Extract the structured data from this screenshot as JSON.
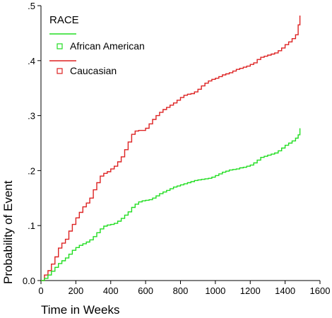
{
  "chart_data": {
    "type": "line",
    "step": true,
    "xlabel": "Time in Weeks",
    "ylabel": "Probability of Event",
    "xlim": [
      0,
      1600
    ],
    "ylim": [
      0,
      0.5
    ],
    "x_ticks": [
      "0",
      "200",
      "400",
      "600",
      "800",
      "1000",
      "1200",
      "1400",
      "1600"
    ],
    "y_ticks": [
      "0.0",
      ".1",
      ".2",
      ".3",
      ".4",
      ".5"
    ],
    "grid": false,
    "legend": {
      "title": "RACE",
      "placement": "top-left",
      "entries": [
        "African American",
        "Caucasian"
      ]
    },
    "series": [
      {
        "name": "African American",
        "color": "#22dd22",
        "x": [
          0,
          20,
          40,
          60,
          80,
          100,
          120,
          140,
          160,
          180,
          200,
          220,
          240,
          260,
          280,
          300,
          320,
          340,
          360,
          380,
          400,
          420,
          440,
          460,
          480,
          500,
          520,
          540,
          560,
          580,
          600,
          620,
          640,
          660,
          680,
          700,
          720,
          740,
          760,
          780,
          800,
          820,
          840,
          860,
          880,
          900,
          920,
          940,
          960,
          980,
          1000,
          1020,
          1040,
          1060,
          1080,
          1100,
          1120,
          1140,
          1160,
          1180,
          1200,
          1220,
          1240,
          1260,
          1280,
          1300,
          1320,
          1340,
          1360,
          1380,
          1400,
          1420,
          1440,
          1460,
          1475,
          1485
        ],
        "y": [
          0.0,
          0.004,
          0.01,
          0.017,
          0.024,
          0.031,
          0.036,
          0.041,
          0.048,
          0.055,
          0.06,
          0.064,
          0.067,
          0.07,
          0.074,
          0.08,
          0.087,
          0.094,
          0.099,
          0.101,
          0.102,
          0.104,
          0.108,
          0.113,
          0.119,
          0.125,
          0.133,
          0.139,
          0.143,
          0.145,
          0.146,
          0.147,
          0.15,
          0.154,
          0.158,
          0.161,
          0.164,
          0.167,
          0.17,
          0.172,
          0.174,
          0.176,
          0.178,
          0.18,
          0.182,
          0.183,
          0.184,
          0.185,
          0.186,
          0.188,
          0.191,
          0.194,
          0.197,
          0.199,
          0.201,
          0.202,
          0.203,
          0.205,
          0.206,
          0.208,
          0.21,
          0.214,
          0.219,
          0.224,
          0.226,
          0.228,
          0.23,
          0.232,
          0.236,
          0.241,
          0.246,
          0.25,
          0.254,
          0.259,
          0.265,
          0.277
        ]
      },
      {
        "name": "Caucasian",
        "color": "#dd2222",
        "x": [
          0,
          20,
          40,
          60,
          80,
          100,
          120,
          140,
          160,
          180,
          200,
          220,
          240,
          260,
          280,
          300,
          320,
          340,
          360,
          380,
          400,
          420,
          440,
          460,
          480,
          500,
          520,
          540,
          560,
          580,
          600,
          620,
          640,
          660,
          680,
          700,
          720,
          740,
          760,
          780,
          800,
          820,
          840,
          860,
          880,
          900,
          920,
          940,
          960,
          980,
          1000,
          1020,
          1040,
          1060,
          1080,
          1100,
          1120,
          1140,
          1160,
          1180,
          1200,
          1220,
          1240,
          1260,
          1280,
          1300,
          1320,
          1340,
          1360,
          1380,
          1400,
          1420,
          1440,
          1460,
          1475,
          1485
        ],
        "y": [
          0.0,
          0.01,
          0.018,
          0.03,
          0.043,
          0.059,
          0.068,
          0.075,
          0.09,
          0.102,
          0.114,
          0.124,
          0.134,
          0.141,
          0.15,
          0.165,
          0.178,
          0.19,
          0.195,
          0.198,
          0.203,
          0.208,
          0.216,
          0.225,
          0.238,
          0.252,
          0.266,
          0.272,
          0.273,
          0.273,
          0.277,
          0.285,
          0.293,
          0.3,
          0.306,
          0.311,
          0.315,
          0.319,
          0.323,
          0.328,
          0.333,
          0.337,
          0.339,
          0.34,
          0.343,
          0.348,
          0.354,
          0.359,
          0.363,
          0.366,
          0.368,
          0.371,
          0.374,
          0.376,
          0.378,
          0.381,
          0.384,
          0.386,
          0.388,
          0.39,
          0.393,
          0.396,
          0.402,
          0.406,
          0.408,
          0.41,
          0.412,
          0.414,
          0.418,
          0.423,
          0.429,
          0.434,
          0.44,
          0.447,
          0.465,
          0.482
        ]
      }
    ]
  }
}
